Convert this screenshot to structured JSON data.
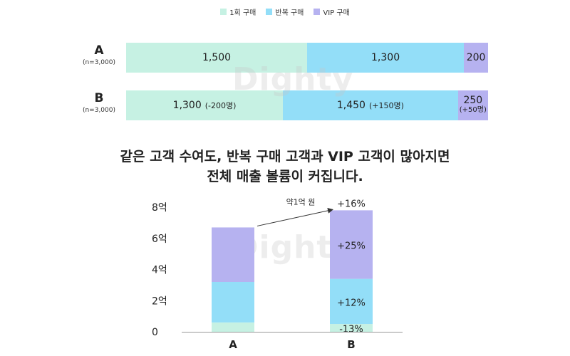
{
  "legend": [
    {
      "label": "1회 구매",
      "color": "#c6f1e3"
    },
    {
      "label": "반복 구매",
      "color": "#93def8"
    },
    {
      "label": "VIP 구매",
      "color": "#b6b2f0"
    }
  ],
  "colors": {
    "one_time": "#c6f1e3",
    "repeat": "#93def8",
    "vip": "#b6b2f0",
    "axis": "#999999",
    "arrow": "#333333"
  },
  "watermark": "Dighty",
  "bar_rows": [
    {
      "letter": "A",
      "n_label": "(n=3,000)",
      "segments": [
        {
          "value": 1500,
          "label": "1,500",
          "delta": ""
        },
        {
          "value": 1300,
          "label": "1,300",
          "delta": ""
        },
        {
          "value": 200,
          "label": "200",
          "delta": ""
        }
      ]
    },
    {
      "letter": "B",
      "n_label": "(n=3,000)",
      "segments": [
        {
          "value": 1300,
          "label": "1,300",
          "delta": "(-200명)"
        },
        {
          "value": 1450,
          "label": "1,450",
          "delta": "(+150명)"
        },
        {
          "value": 250,
          "label": "250",
          "delta": "(+50명)"
        }
      ]
    }
  ],
  "headline": {
    "line1": "같은 고객 수여도, 반복 구매 고객과 VIP 고객이 많아지면",
    "line2": "전체 매출 볼륨이 커집니다."
  },
  "chart_data": {
    "type": "bar",
    "stacked": true,
    "categories": [
      "A",
      "B"
    ],
    "ylim": [
      0,
      8
    ],
    "yticks": [
      "0",
      "2억",
      "4억",
      "6억",
      "8억"
    ],
    "series": [
      {
        "values": [
          0.6,
          0.5
        ],
        "color": "#c6f1e3"
      },
      {
        "values": [
          2.6,
          2.9
        ],
        "color": "#93def8"
      },
      {
        "values": [
          3.5,
          4.4
        ],
        "color": "#b6b2f0"
      }
    ],
    "segment_labels": [
      [
        "",
        "",
        ""
      ],
      [
        "-13%",
        "+12%",
        "+25%"
      ]
    ],
    "total_label": "+16%",
    "annotation": "약1억 원"
  }
}
